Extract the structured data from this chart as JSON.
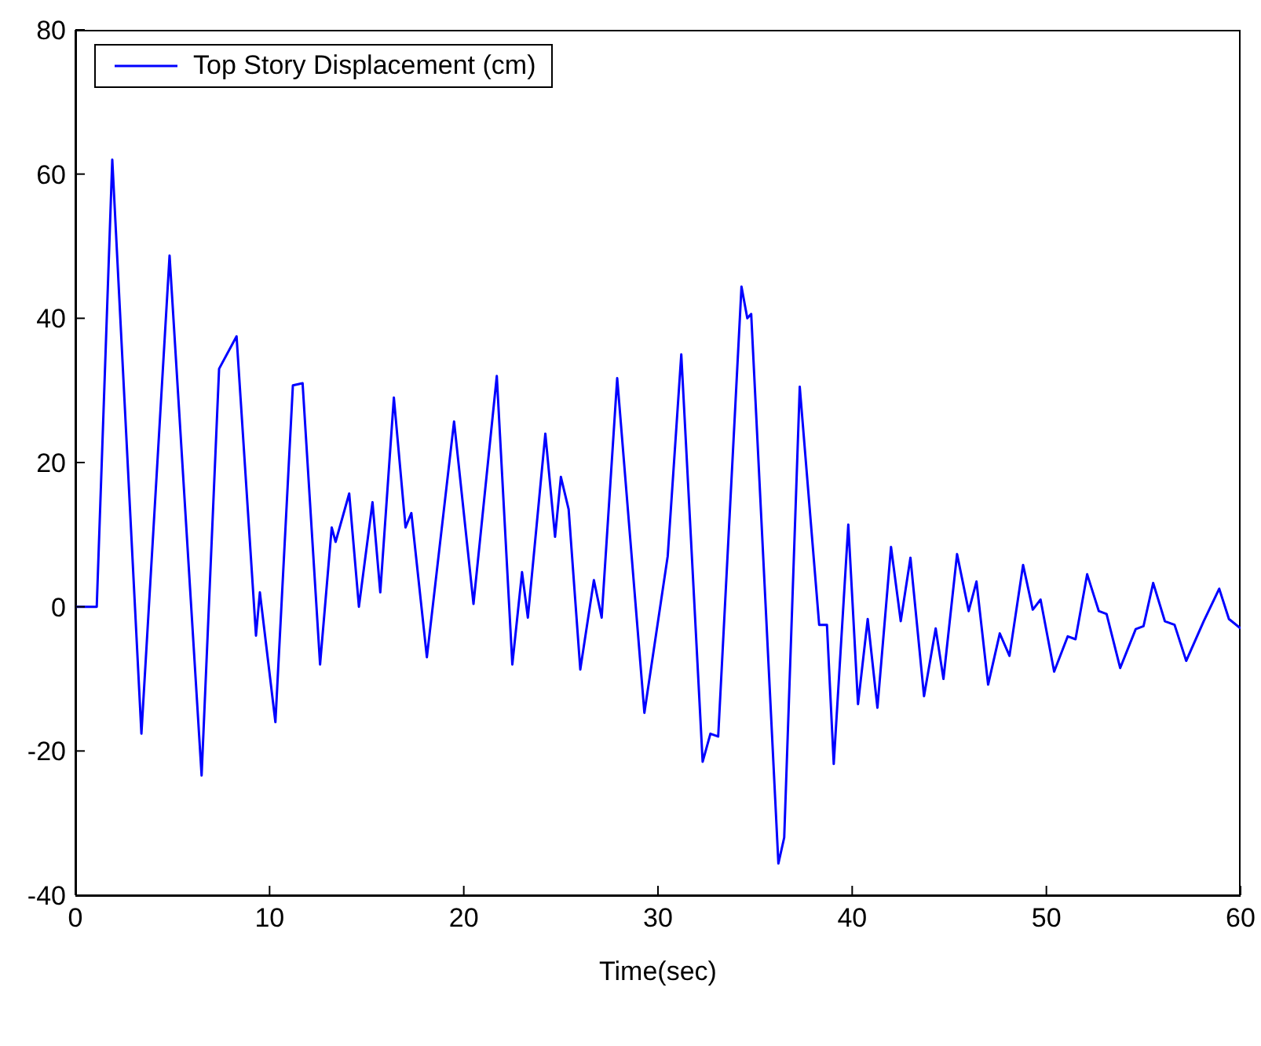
{
  "chart_data": {
    "type": "line",
    "xlabel": "Time(sec)",
    "xlim": [
      0,
      60
    ],
    "xticks": [
      0,
      10,
      20,
      30,
      40,
      50,
      60
    ],
    "ylim": [
      -40,
      80
    ],
    "yticks": [
      -40,
      -20,
      0,
      20,
      40,
      60,
      80
    ],
    "grid": false,
    "legend": "top left",
    "marker": "none",
    "line_style": "solid",
    "series": [
      {
        "name": "Top Story Displacement (cm)",
        "color": "#0000ff",
        "x": [
          0,
          0.2,
          1.1,
          1.9,
          3.4,
          4.85,
          6.5,
          7.4,
          8.3,
          9.3,
          9.5,
          10.3,
          11.2,
          11.7,
          12.6,
          13.2,
          13.4,
          14.1,
          14.6,
          15.3,
          15.7,
          16.4,
          17,
          17.3,
          18.1,
          19.5,
          20.5,
          21.7,
          22.5,
          23,
          23.3,
          24.2,
          24.7,
          25,
          25.4,
          26,
          26.7,
          27.1,
          27.9,
          29.3,
          30.5,
          31.2,
          32.3,
          32.7,
          33.1,
          34.3,
          34.6,
          34.8,
          36.2,
          36.5,
          37.3,
          38.3,
          38.7,
          39.05,
          39.8,
          40.3,
          40.8,
          41.3,
          42,
          42.5,
          43,
          43.7,
          44.3,
          44.7,
          45.4,
          46,
          46.4,
          47,
          47.6,
          48.1,
          48.8,
          49.3,
          49.7,
          50.4,
          51.1,
          51.5,
          52.1,
          52.7,
          53.1,
          53.8,
          54.6,
          55,
          55.5,
          56.1,
          56.6,
          57.2,
          58.1,
          58.9,
          59.4,
          60
        ],
        "values": [
          0,
          0,
          0,
          62,
          -17.6,
          48.7,
          -23.4,
          33,
          37.5,
          -4,
          2,
          -16,
          30.7,
          31,
          -8,
          11,
          9,
          15.7,
          0,
          14.5,
          2,
          29,
          11,
          13,
          -7,
          25.7,
          0.4,
          32,
          -8,
          4.8,
          -1.5,
          24,
          9.7,
          18,
          13.5,
          -8.7,
          3.7,
          -1.5,
          31.7,
          -14.7,
          7,
          35,
          -21.5,
          -17.6,
          -18,
          44.4,
          40,
          40.6,
          -35.6,
          -32,
          30.5,
          -2.5,
          -2.5,
          -21.8,
          11.4,
          -13.5,
          -1.7,
          -14,
          8.3,
          -2,
          6.8,
          -12.4,
          -3,
          -10,
          7.3,
          -0.6,
          3.5,
          -10.8,
          -3.7,
          -6.8,
          5.8,
          -0.4,
          1,
          -9,
          -4.1,
          -4.5,
          4.5,
          -0.6,
          -1,
          -8.5,
          -3.1,
          -2.7,
          3.3,
          -2,
          -2.5,
          -7.5,
          -2,
          2.5,
          -1.7,
          -3
        ]
      }
    ]
  }
}
